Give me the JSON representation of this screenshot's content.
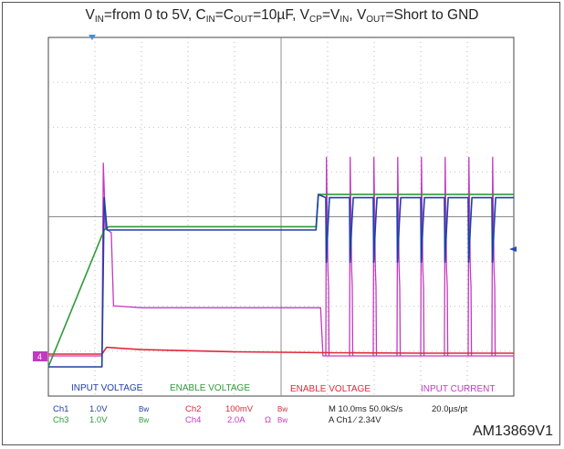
{
  "title": {
    "p1": "V",
    "s1": "IN",
    "p2": "=from 0 to 5V, C",
    "s2": "IN",
    "p3": "=C",
    "s3": "OUT",
    "p4": "=10µF, V",
    "s4": "CP",
    "p5": "=V",
    "s5": "IN",
    "p6": ", V",
    "s6": "OUT",
    "p7": "=Short to GND"
  },
  "labels": {
    "input_voltage": "INPUT VOLTAGE",
    "enable_voltage_green": "ENABLE VOLTAGE",
    "enable_voltage_red": "ENABLE VOLTAGE",
    "input_current": "INPUT CURRENT",
    "ch4_marker": "4"
  },
  "settings": {
    "ch1": "Ch1",
    "ch1_scale": "1.0V",
    "ch1_bw": "Bw",
    "ch2": "Ch2",
    "ch2_scale": "100mV",
    "ch2_bw": "Bw",
    "ch3": "Ch3",
    "ch3_scale": "1.0V",
    "ch3_bw": "Bw",
    "ch4": "Ch4",
    "ch4_scale": "2.0A",
    "ch4_omega": "Ω",
    "ch4_bw": "Bw",
    "timebase": "M 10.0ms 50.0kS/s",
    "point_interval": "20.0µs/pt",
    "trigger": "A  Ch1  ⁄  2.34V"
  },
  "footer_code": "AM13869V1",
  "colors": {
    "input_voltage": "#1f3fa8",
    "enable_voltage": "#2e9a3a",
    "enable_voltage_red": "#e0283a",
    "input_current": "#c23ac0",
    "grid": "#8c8c8c"
  },
  "chart_data": {
    "type": "line",
    "x_unit": "ms",
    "xlim": [
      0,
      100
    ],
    "grid": true,
    "series": [
      {
        "name": "INPUT VOLTAGE",
        "unit": "V",
        "x": [
          0,
          11.5,
          12,
          12.6,
          20,
          40,
          57.5,
          58,
          60,
          100
        ],
        "values": [
          -0.14,
          -0.14,
          5.1,
          4.1,
          4.1,
          4.1,
          4.1,
          5.2,
          5.1,
          5.1
        ]
      },
      {
        "name": "ENABLE VOLTAGE",
        "unit": "V",
        "x": [
          0,
          12,
          13,
          20,
          40,
          57.5,
          58,
          100
        ],
        "values": [
          -0.14,
          4.1,
          4.2,
          4.2,
          4.2,
          4.2,
          5.2,
          5.2
        ]
      },
      {
        "name": "ENABLE VOLTAGE",
        "unit": "mV",
        "x": [
          0,
          11.5,
          12.5,
          20,
          40,
          60,
          80,
          100
        ],
        "values": [
          0,
          0,
          15,
          10,
          5,
          3,
          2,
          2
        ]
      },
      {
        "name": "INPUT CURRENT",
        "unit": "A",
        "x": [
          0,
          11.5,
          11.8,
          12.3,
          13.5,
          14,
          20,
          40,
          58.5,
          59,
          100
        ],
        "values": [
          0,
          0,
          10,
          6.6,
          6.4,
          2.6,
          2.5,
          2.5,
          2.5,
          0,
          0
        ],
        "pulse_period_ms": 5.1,
        "pulse_peak_A": 10.3,
        "pulse_plateau_A": 4.5
      }
    ]
  }
}
